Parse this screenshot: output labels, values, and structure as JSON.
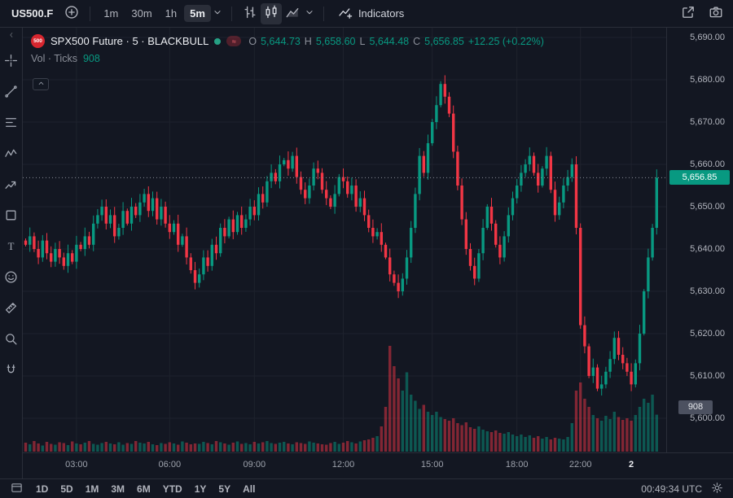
{
  "toolbar": {
    "symbol": "US500.F",
    "intervals": [
      "1m",
      "30m",
      "1h",
      "5m"
    ],
    "selected_interval": "5m",
    "indicators_label": "Indicators"
  },
  "legend": {
    "badge": "500",
    "title": "SPX500 Future · 5 · BLACKBULL",
    "mode_glyph": "≈",
    "ohlc": {
      "o_label": "O",
      "o": "5,644.73",
      "h_label": "H",
      "h": "5,658.60",
      "l_label": "L",
      "l": "5,644.48",
      "c_label": "C",
      "c": "5,656.85",
      "change": "+12.25 (+0.22%)"
    },
    "volume_label": "Vol · Ticks",
    "volume_value": "908"
  },
  "sidebar": {
    "tools": [
      "crosshair",
      "trend-line",
      "fib-retracement",
      "pattern",
      "forecast",
      "shapes",
      "text",
      "emoji",
      "measure",
      "zoom",
      "magnet"
    ]
  },
  "price_axis": {
    "labels": [
      "5,690.00",
      "5,680.00",
      "5,670.00",
      "5,660.00",
      "5,650.00",
      "5,640.00",
      "5,630.00",
      "5,620.00",
      "5,610.00",
      "5,600.00"
    ],
    "last_price_badge": "5,656.85",
    "volume_badge": "908"
  },
  "time_axis": {
    "labels": [
      "03:00",
      "06:00",
      "09:00",
      "12:00",
      "15:00",
      "18:00",
      "22:00",
      "2"
    ]
  },
  "bottom_bar": {
    "ranges": [
      "1D",
      "5D",
      "1M",
      "3M",
      "6M",
      "YTD",
      "1Y",
      "5Y",
      "All"
    ],
    "clock": "00:49:34 UTC"
  },
  "colors": {
    "up": "#089981",
    "down": "#f23645",
    "grid": "#1e222d",
    "last_line": "#8a8e9a",
    "badge_bg": "#089981",
    "vol_badge_bg": "#4c5160",
    "bg": "#131722",
    "border": "#2a2e39",
    "text": "#d1d4dc",
    "axis_text": "#b2b5be",
    "logo_red": "#d7262f"
  },
  "chart_data": {
    "type": "candlestick+volume",
    "title": "SPX500 Future · 5 · BLACKBULL",
    "price_range": [
      5600,
      5690
    ],
    "grid_step": 10,
    "last_price": 5656.85,
    "last_volume": 908,
    "first_open": 5642,
    "time_ticks": [
      [
        12,
        "03:00"
      ],
      [
        34,
        "06:00"
      ],
      [
        54,
        "09:00"
      ],
      [
        75,
        "12:00"
      ],
      [
        96,
        "15:00"
      ],
      [
        116,
        "18:00"
      ],
      [
        131,
        "22:00"
      ],
      [
        143,
        "2",
        true
      ]
    ],
    "closes": [
      5641,
      5643,
      5640,
      5638,
      5642,
      5639,
      5637,
      5640,
      5638,
      5636,
      5639,
      5637,
      5641,
      5640,
      5643,
      5641,
      5646,
      5648,
      5650,
      5646,
      5648,
      5643,
      5645,
      5649,
      5646,
      5650,
      5648,
      5651,
      5653,
      5649,
      5652,
      5647,
      5650,
      5646,
      5644,
      5646,
      5641,
      5643,
      5638,
      5635,
      5632,
      5634,
      5638,
      5636,
      5641,
      5639,
      5645,
      5643,
      5647,
      5644,
      5648,
      5645,
      5647,
      5650,
      5648,
      5653,
      5651,
      5656,
      5658,
      5656,
      5660,
      5661,
      5659,
      5662,
      5657,
      5654,
      5652,
      5655,
      5659,
      5658,
      5654,
      5652,
      5650,
      5653,
      5657,
      5656,
      5653,
      5655,
      5650,
      5652,
      5648,
      5645,
      5643,
      5644,
      5641,
      5638,
      5634,
      5632,
      5630,
      5633,
      5638,
      5645,
      5653,
      5662,
      5658,
      5665,
      5670,
      5674,
      5679,
      5676,
      5672,
      5663,
      5655,
      5647,
      5640,
      5636,
      5633,
      5639,
      5645,
      5650,
      5646,
      5641,
      5638,
      5643,
      5648,
      5652,
      5655,
      5658,
      5660,
      5662,
      5658,
      5655,
      5659,
      5662,
      5654,
      5648,
      5651,
      5655,
      5657,
      5660,
      5645,
      5622,
      5617,
      5610,
      5612,
      5607,
      5608,
      5611,
      5614,
      5619,
      5615,
      5613,
      5611,
      5608,
      5613,
      5620,
      5630,
      5638,
      5645,
      5656.85
    ],
    "volumes": [
      220,
      180,
      260,
      200,
      150,
      240,
      190,
      170,
      230,
      210,
      160,
      250,
      200,
      180,
      220,
      260,
      190,
      170,
      210,
      240,
      200,
      180,
      230,
      170,
      210,
      190,
      260,
      220,
      200,
      240,
      180,
      160,
      210,
      190,
      230,
      200,
      170,
      250,
      220,
      180,
      200,
      190,
      240,
      210,
      180,
      260,
      230,
      200,
      170,
      220,
      250,
      190,
      210,
      180,
      240,
      200,
      230,
      260,
      210,
      190,
      220,
      240,
      200,
      180,
      230,
      210,
      190,
      250,
      220,
      200,
      180,
      170,
      210,
      240,
      190,
      220,
      260,
      230,
      200,
      250,
      280,
      300,
      340,
      380,
      620,
      1100,
      2600,
      2100,
      1800,
      1500,
      1950,
      1400,
      1250,
      1050,
      1150,
      980,
      900,
      980,
      850,
      800,
      760,
      820,
      700,
      650,
      720,
      600,
      560,
      620,
      540,
      500,
      480,
      520,
      460,
      440,
      480,
      420,
      380,
      420,
      360,
      400,
      340,
      380,
      320,
      360,
      300,
      340,
      320,
      300,
      360,
      700,
      1500,
      1700,
      1300,
      1100,
      900,
      820,
      760,
      880,
      800,
      980,
      850,
      780,
      820,
      760,
      900,
      1100,
      1300,
      1200,
      1400,
      908
    ]
  }
}
